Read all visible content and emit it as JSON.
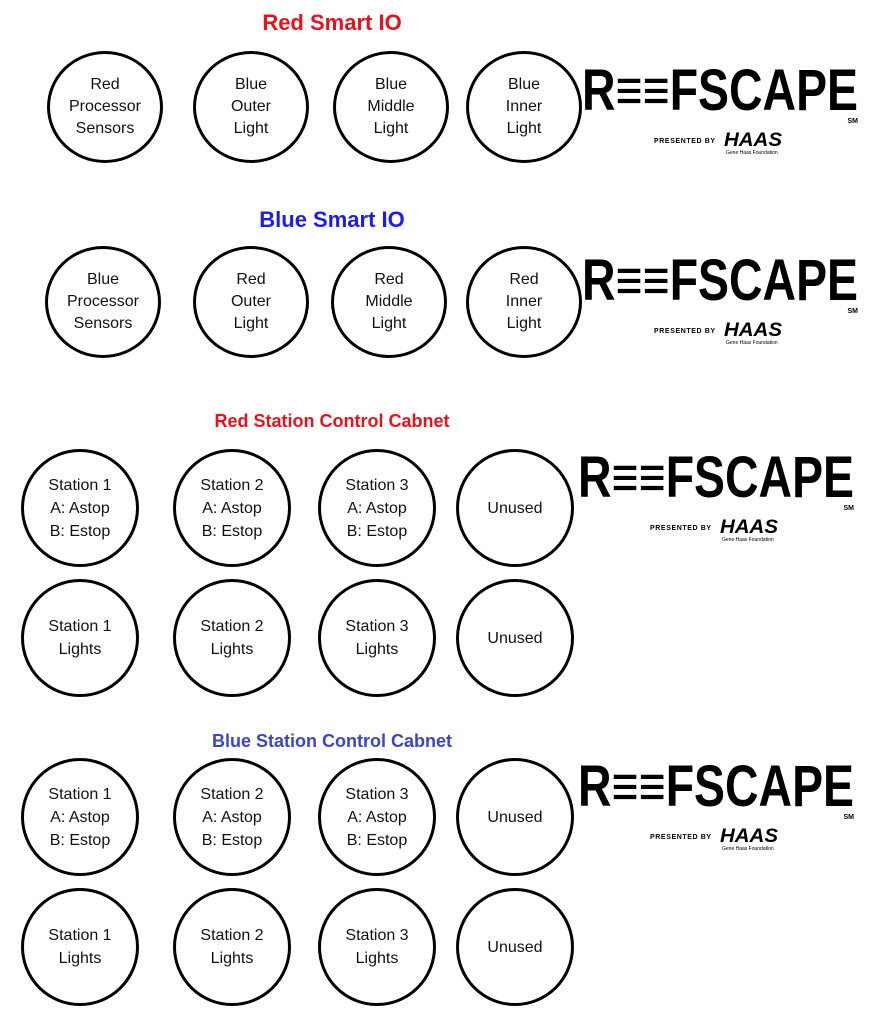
{
  "logo": {
    "wordmark": "REEFSCAPE",
    "wordmark_display": "R≡≡FSCAPE",
    "trademark": "SM",
    "presented_by": "PRESENTED BY",
    "sponsor": "HAAS",
    "sponsor_sub": "Gene Haas Foundation"
  },
  "colors": {
    "red_title": "#e8121c",
    "blue_title": "#1d1cf0",
    "blue_station_title": "#3a46c8",
    "circle_border": "#000000"
  },
  "sections": [
    {
      "title": "Red Smart IO",
      "circles": [
        "Red\nProcessor\nSensors",
        "Blue\nOuter\nLight",
        "Blue\nMiddle\nLight",
        "Blue\nInner\nLight"
      ]
    },
    {
      "title": "Blue Smart IO",
      "circles": [
        "Blue\nProcessor\nSensors",
        "Red\nOuter\nLight",
        "Red\nMiddle\nLight",
        "Red\nInner\nLight"
      ]
    },
    {
      "title": "Red Station Control Cabnet",
      "row1": [
        "Station 1\nA: Astop\nB: Estop",
        "Station 2\nA: Astop\nB: Estop",
        "Station 3\nA: Astop\nB: Estop",
        "Unused"
      ],
      "row2": [
        "Station 1\nLights",
        "Station 2\nLights",
        "Station 3\nLights",
        "Unused"
      ]
    },
    {
      "title": "Blue Station Control Cabnet",
      "row1": [
        "Station 1\nA: Astop\nB: Estop",
        "Station 2\nA: Astop\nB: Estop",
        "Station 3\nA: Astop\nB: Estop",
        "Unused"
      ],
      "row2": [
        "Station 1\nLights",
        "Station 2\nLights",
        "Station 3\nLights",
        "Unused"
      ]
    }
  ]
}
